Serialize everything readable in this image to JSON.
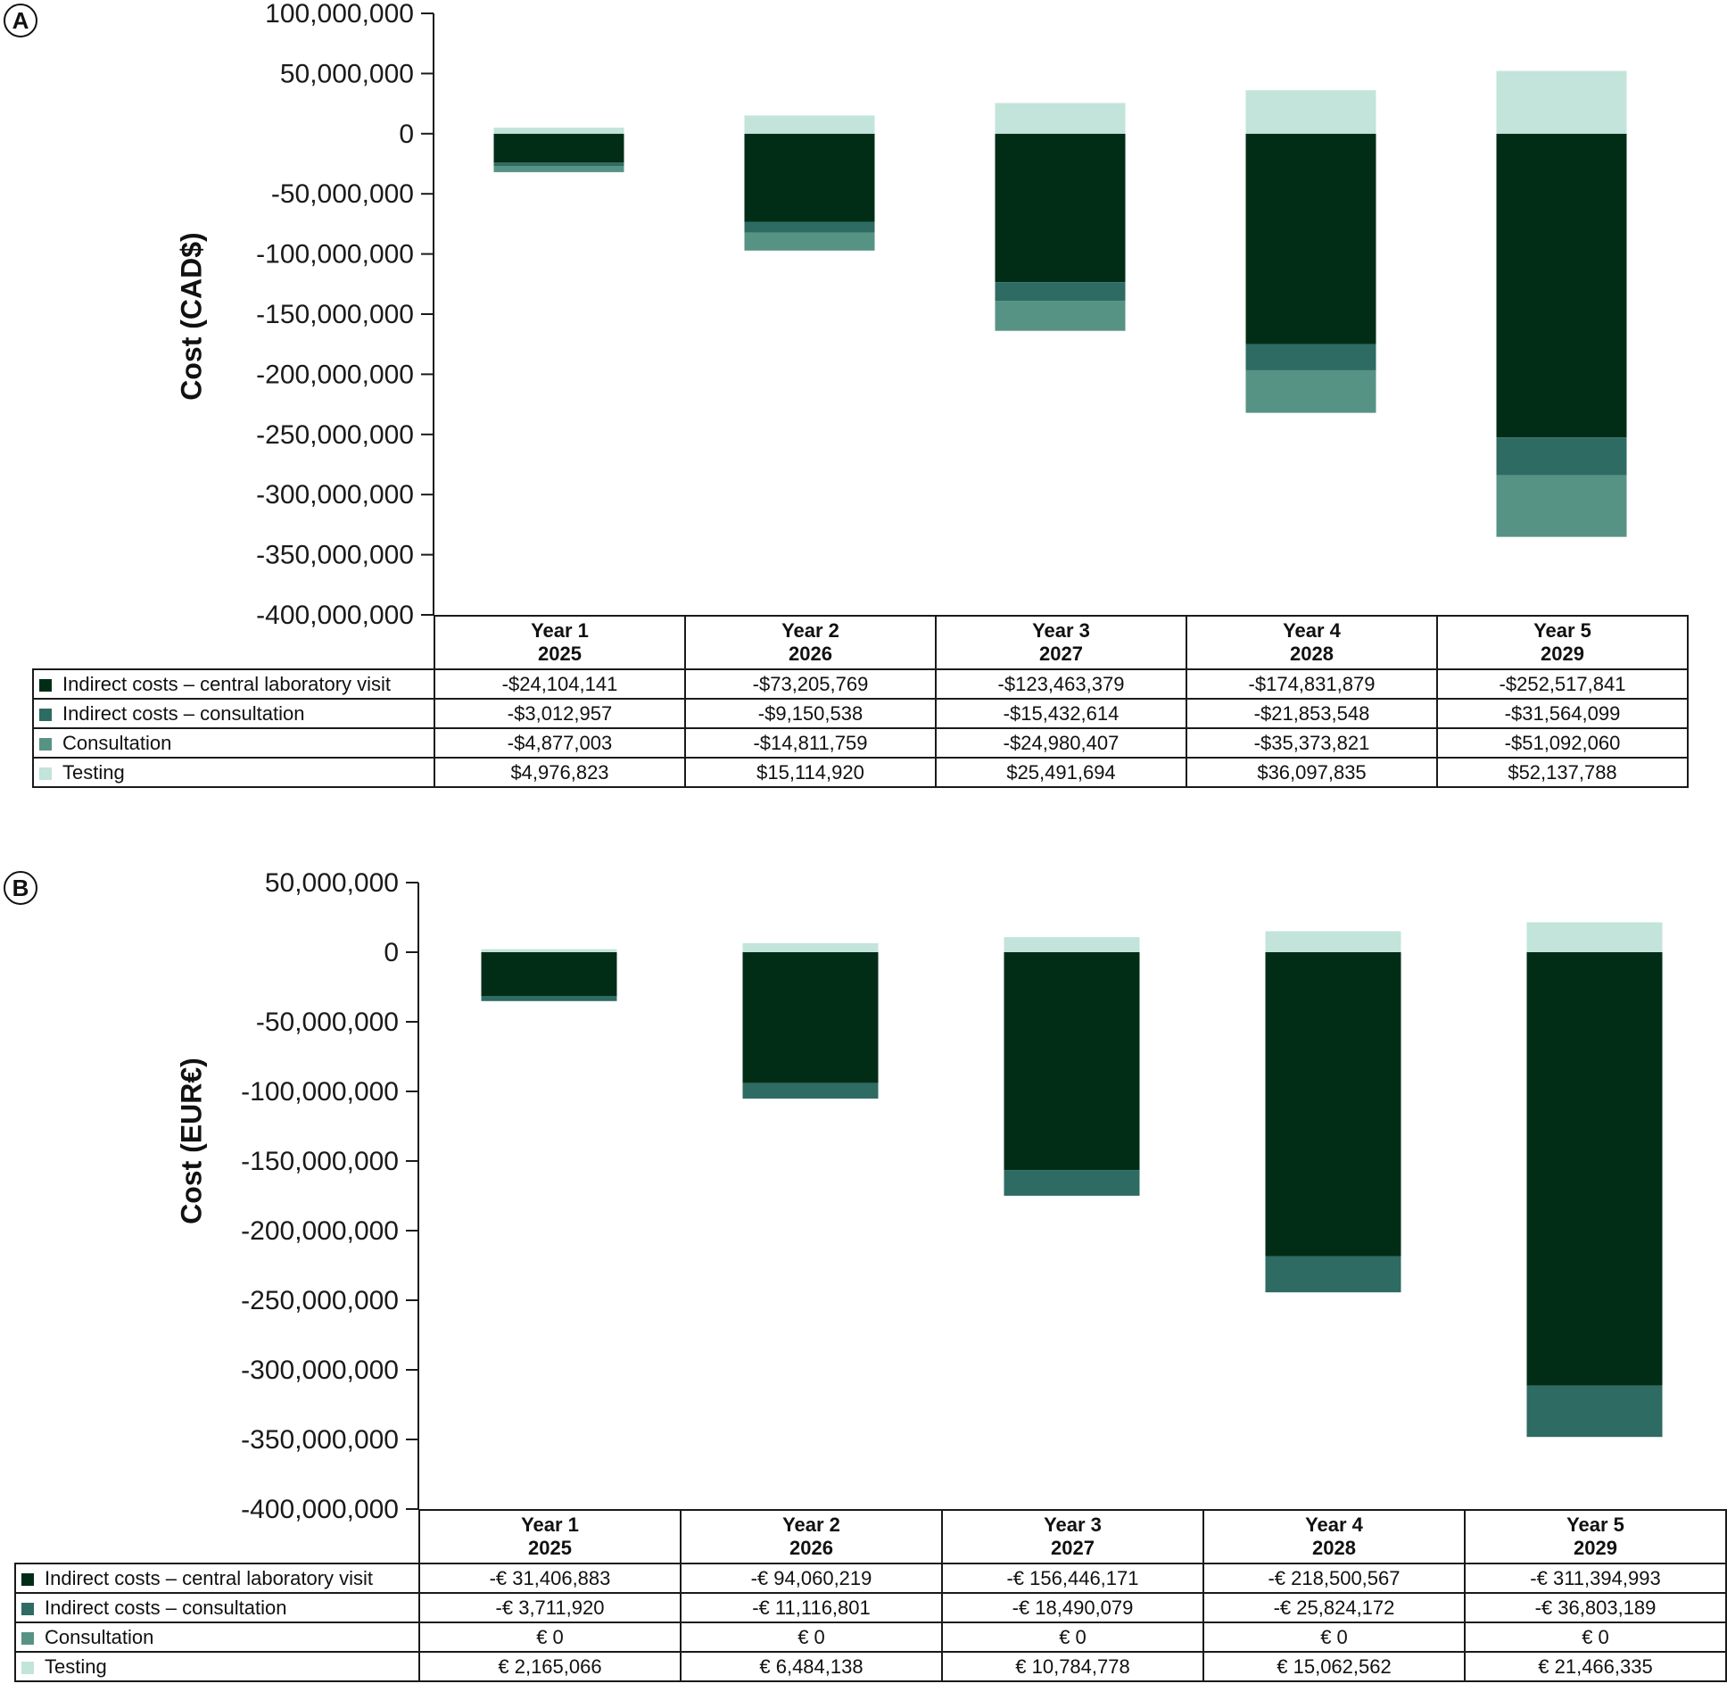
{
  "chart_data": [
    {
      "panel_label": "A",
      "type": "bar",
      "stacked": true,
      "ylabel": "Cost (CAD$)",
      "ylim": [
        -400000000,
        100000000
      ],
      "yticks": [
        100000000,
        50000000,
        0,
        -50000000,
        -100000000,
        -150000000,
        -200000000,
        -250000000,
        -300000000,
        -350000000,
        -400000000
      ],
      "ytick_labels": [
        "100,000,000",
        "50,000,000",
        "0",
        "-50,000,000",
        "-100,000,000",
        "-150,000,000",
        "-200,000,000",
        "-250,000,000",
        "-300,000,000",
        "-350,000,000",
        "-400,000,000"
      ],
      "categories": [
        {
          "label": "Year 1",
          "year": "2025"
        },
        {
          "label": "Year 2",
          "year": "2026"
        },
        {
          "label": "Year 3",
          "year": "2027"
        },
        {
          "label": "Year 4",
          "year": "2028"
        },
        {
          "label": "Year 5",
          "year": "2029"
        }
      ],
      "series": [
        {
          "name": "Indirect costs – central laboratory visit",
          "color": "#012d17",
          "values": [
            -24104141,
            -73205769,
            -123463379,
            -174831879,
            -252517841
          ],
          "labels": [
            "-$24,104,141",
            "-$73,205,769",
            "-$123,463,379",
            "-$174,831,879",
            "-$252,517,841"
          ]
        },
        {
          "name": "Indirect costs – consultation",
          "color": "#2e6b62",
          "values": [
            -3012957,
            -9150538,
            -15432614,
            -21853548,
            -31564099
          ],
          "labels": [
            "-$3,012,957",
            "-$9,150,538",
            "-$15,432,614",
            "-$21,853,548",
            "-$31,564,099"
          ]
        },
        {
          "name": "Consultation",
          "color": "#579385",
          "values": [
            -4877003,
            -14811759,
            -24980407,
            -35373821,
            -51092060
          ],
          "labels": [
            "-$4,877,003",
            "-$14,811,759",
            "-$24,980,407",
            "-$35,373,821",
            "-$51,092,060"
          ]
        },
        {
          "name": "Testing",
          "color": "#c2e4da",
          "values": [
            4976823,
            15114920,
            25491694,
            36097835,
            52137788
          ],
          "labels": [
            "$4,976,823",
            "$15,114,920",
            "$25,491,694",
            "$36,097,835",
            "$52,137,788"
          ]
        }
      ]
    },
    {
      "panel_label": "B",
      "type": "bar",
      "stacked": true,
      "ylabel": "Cost (EUR€)",
      "ylim": [
        -400000000,
        50000000
      ],
      "yticks": [
        50000000,
        0,
        -50000000,
        -100000000,
        -150000000,
        -200000000,
        -250000000,
        -300000000,
        -350000000,
        -400000000
      ],
      "ytick_labels": [
        "50,000,000",
        "0",
        "-50,000,000",
        "-100,000,000",
        "-150,000,000",
        "-200,000,000",
        "-250,000,000",
        "-300,000,000",
        "-350,000,000",
        "-400,000,000"
      ],
      "categories": [
        {
          "label": "Year 1",
          "year": "2025"
        },
        {
          "label": "Year 2",
          "year": "2026"
        },
        {
          "label": "Year 3",
          "year": "2027"
        },
        {
          "label": "Year 4",
          "year": "2028"
        },
        {
          "label": "Year 5",
          "year": "2029"
        }
      ],
      "series": [
        {
          "name": "Indirect costs – central laboratory visit",
          "color": "#012d17",
          "values": [
            -31406883,
            -94060219,
            -156446171,
            -218500567,
            -311394993
          ],
          "labels": [
            "-€ 31,406,883",
            "-€ 94,060,219",
            "-€ 156,446,171",
            "-€ 218,500,567",
            "-€ 311,394,993"
          ]
        },
        {
          "name": "Indirect costs – consultation",
          "color": "#2e6b62",
          "values": [
            -3711920,
            -11116801,
            -18490079,
            -25824172,
            -36803189
          ],
          "labels": [
            "-€ 3,711,920",
            "-€ 11,116,801",
            "-€ 18,490,079",
            "-€ 25,824,172",
            "-€ 36,803,189"
          ]
        },
        {
          "name": "Consultation",
          "color": "#579385",
          "values": [
            0,
            0,
            0,
            0,
            0
          ],
          "labels": [
            "€ 0",
            "€ 0",
            "€ 0",
            "€ 0",
            "€ 0"
          ]
        },
        {
          "name": "Testing",
          "color": "#c2e4da",
          "values": [
            2165066,
            6484138,
            10784778,
            15062562,
            21466335
          ],
          "labels": [
            "€ 2,165,066",
            "€ 6,484,138",
            "€ 10,784,778",
            "€ 15,062,562",
            "€ 21,466,335"
          ]
        }
      ]
    }
  ]
}
